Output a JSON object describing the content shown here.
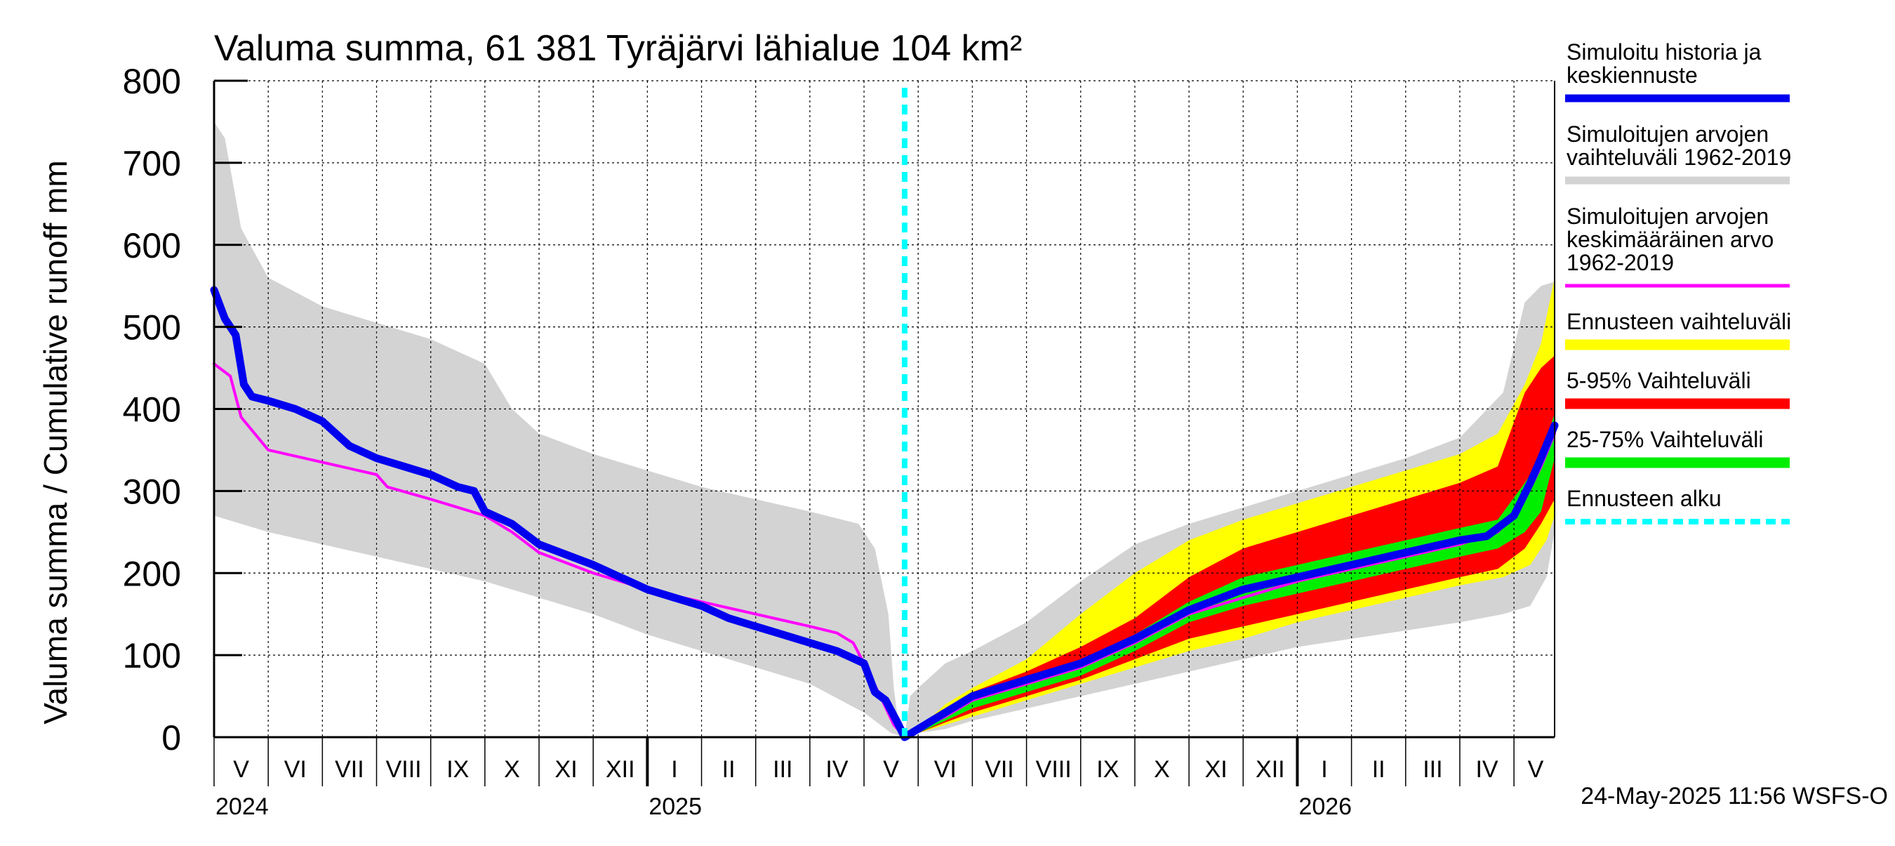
{
  "chart_data": {
    "type": "area",
    "title": "Valuma summa, 61 381 Tyräjärvi lähialue 104 km²",
    "ylabel": "Valuma summa / Cumulative runoff    mm",
    "ylim": [
      0,
      800
    ],
    "yticks": [
      0,
      100,
      200,
      300,
      400,
      500,
      600,
      700,
      800
    ],
    "xlim": [
      0,
      24.75
    ],
    "grid": true,
    "months": [
      {
        "label": "V",
        "x": 0.5
      },
      {
        "label": "VI",
        "x": 1.5
      },
      {
        "label": "VII",
        "x": 2.5
      },
      {
        "label": "VIII",
        "x": 3.5
      },
      {
        "label": "IX",
        "x": 4.5
      },
      {
        "label": "X",
        "x": 5.5
      },
      {
        "label": "XI",
        "x": 6.5
      },
      {
        "label": "XII",
        "x": 7.5
      },
      {
        "label": "I",
        "x": 8.5
      },
      {
        "label": "II",
        "x": 9.5
      },
      {
        "label": "III",
        "x": 10.5
      },
      {
        "label": "IV",
        "x": 11.5
      },
      {
        "label": "V",
        "x": 12.5
      },
      {
        "label": "VI",
        "x": 13.5
      },
      {
        "label": "VII",
        "x": 14.5
      },
      {
        "label": "VIII",
        "x": 15.5
      },
      {
        "label": "IX",
        "x": 16.5
      },
      {
        "label": "X",
        "x": 17.5
      },
      {
        "label": "XI",
        "x": 18.5
      },
      {
        "label": "XII",
        "x": 19.5
      },
      {
        "label": "I",
        "x": 20.5
      },
      {
        "label": "II",
        "x": 21.5
      },
      {
        "label": "III",
        "x": 22.5
      },
      {
        "label": "IV",
        "x": 23.5
      },
      {
        "label": "V",
        "x": 24.4
      }
    ],
    "years": [
      {
        "label": "2024",
        "x": 0
      },
      {
        "label": "2025",
        "x": 8
      },
      {
        "label": "2026",
        "x": 20
      }
    ],
    "year_boundaries": [
      8,
      20
    ],
    "forecast_start": 12.75,
    "series": [
      {
        "name": "Simuloitujen arvojen vaihteluväli 1962-2019",
        "kind": "band",
        "color": "#d3d3d3",
        "upper": [
          [
            0,
            750
          ],
          [
            0.2,
            730
          ],
          [
            0.5,
            620
          ],
          [
            1,
            560
          ],
          [
            2,
            525
          ],
          [
            3,
            505
          ],
          [
            4,
            485
          ],
          [
            5,
            455
          ],
          [
            5.5,
            400
          ],
          [
            6,
            370
          ],
          [
            7,
            345
          ],
          [
            8,
            325
          ],
          [
            9,
            305
          ],
          [
            10,
            290
          ],
          [
            11,
            275
          ],
          [
            11.9,
            260
          ],
          [
            12.2,
            230
          ],
          [
            12.45,
            150
          ],
          [
            12.55,
            60
          ],
          [
            12.65,
            10
          ],
          [
            12.75,
            0
          ],
          [
            12.85,
            50
          ],
          [
            13,
            60
          ],
          [
            13.5,
            90
          ],
          [
            14,
            105
          ],
          [
            15,
            140
          ],
          [
            16,
            190
          ],
          [
            17,
            235
          ],
          [
            18,
            260
          ],
          [
            19,
            280
          ],
          [
            20,
            300
          ],
          [
            21,
            320
          ],
          [
            22,
            340
          ],
          [
            23,
            365
          ],
          [
            23.8,
            420
          ],
          [
            24.2,
            530
          ],
          [
            24.5,
            550
          ],
          [
            24.75,
            555
          ]
        ],
        "lower": [
          [
            0,
            270
          ],
          [
            1,
            250
          ],
          [
            2,
            235
          ],
          [
            3,
            220
          ],
          [
            4,
            205
          ],
          [
            5,
            190
          ],
          [
            6,
            170
          ],
          [
            7,
            150
          ],
          [
            8,
            125
          ],
          [
            9,
            105
          ],
          [
            10,
            85
          ],
          [
            11,
            65
          ],
          [
            12,
            30
          ],
          [
            12.5,
            5
          ],
          [
            12.75,
            0
          ],
          [
            13,
            5
          ],
          [
            13.5,
            10
          ],
          [
            14,
            20
          ],
          [
            15,
            35
          ],
          [
            16,
            50
          ],
          [
            17,
            65
          ],
          [
            18,
            80
          ],
          [
            19,
            95
          ],
          [
            20,
            110
          ],
          [
            21,
            120
          ],
          [
            22,
            130
          ],
          [
            23,
            140
          ],
          [
            23.8,
            150
          ],
          [
            24.3,
            160
          ],
          [
            24.6,
            195
          ],
          [
            24.75,
            250
          ]
        ]
      },
      {
        "name": "Ennusteen vaihteluväli",
        "kind": "band",
        "color": "#ffff00",
        "upper": [
          [
            12.75,
            0
          ],
          [
            13,
            10
          ],
          [
            13.5,
            40
          ],
          [
            14,
            60
          ],
          [
            15,
            95
          ],
          [
            16,
            150
          ],
          [
            17,
            200
          ],
          [
            18,
            240
          ],
          [
            19,
            265
          ],
          [
            20,
            285
          ],
          [
            21,
            305
          ],
          [
            22,
            325
          ],
          [
            23,
            345
          ],
          [
            23.7,
            370
          ],
          [
            24.2,
            430
          ],
          [
            24.5,
            480
          ],
          [
            24.75,
            560
          ]
        ],
        "lower": [
          [
            12.75,
            0
          ],
          [
            13,
            5
          ],
          [
            13.5,
            15
          ],
          [
            14,
            25
          ],
          [
            15,
            45
          ],
          [
            16,
            65
          ],
          [
            17,
            85
          ],
          [
            18,
            105
          ],
          [
            19,
            120
          ],
          [
            20,
            140
          ],
          [
            21,
            155
          ],
          [
            22,
            170
          ],
          [
            23,
            185
          ],
          [
            23.8,
            195
          ],
          [
            24.3,
            210
          ],
          [
            24.6,
            240
          ],
          [
            24.75,
            270
          ]
        ]
      },
      {
        "name": "5-95% Vaihteluväli",
        "kind": "band",
        "color": "#ff0000",
        "upper": [
          [
            12.75,
            0
          ],
          [
            13,
            10
          ],
          [
            13.5,
            30
          ],
          [
            14,
            55
          ],
          [
            15,
            80
          ],
          [
            16,
            110
          ],
          [
            17,
            145
          ],
          [
            18,
            195
          ],
          [
            19,
            230
          ],
          [
            20,
            250
          ],
          [
            21,
            270
          ],
          [
            22,
            290
          ],
          [
            23,
            310
          ],
          [
            23.7,
            330
          ],
          [
            24.2,
            420
          ],
          [
            24.5,
            450
          ],
          [
            24.75,
            465
          ]
        ],
        "lower": [
          [
            12.75,
            0
          ],
          [
            13,
            5
          ],
          [
            13.5,
            18
          ],
          [
            14,
            30
          ],
          [
            15,
            50
          ],
          [
            16,
            70
          ],
          [
            17,
            95
          ],
          [
            18,
            120
          ],
          [
            19,
            135
          ],
          [
            20,
            150
          ],
          [
            21,
            165
          ],
          [
            22,
            180
          ],
          [
            23,
            195
          ],
          [
            23.7,
            205
          ],
          [
            24.2,
            230
          ],
          [
            24.5,
            260
          ],
          [
            24.75,
            290
          ]
        ]
      },
      {
        "name": "25-75% Vaihteluväli",
        "kind": "band",
        "color": "#00ee00",
        "upper": [
          [
            12.75,
            0
          ],
          [
            13,
            8
          ],
          [
            13.5,
            25
          ],
          [
            14,
            45
          ],
          [
            15,
            65
          ],
          [
            16,
            90
          ],
          [
            17,
            125
          ],
          [
            18,
            165
          ],
          [
            19,
            195
          ],
          [
            20,
            210
          ],
          [
            21,
            225
          ],
          [
            22,
            240
          ],
          [
            23,
            255
          ],
          [
            23.7,
            265
          ],
          [
            24.2,
            310
          ],
          [
            24.5,
            340
          ],
          [
            24.75,
            395
          ]
        ],
        "lower": [
          [
            12.75,
            0
          ],
          [
            13,
            5
          ],
          [
            13.5,
            20
          ],
          [
            14,
            35
          ],
          [
            15,
            55
          ],
          [
            16,
            75
          ],
          [
            17,
            105
          ],
          [
            18,
            140
          ],
          [
            19,
            160
          ],
          [
            20,
            175
          ],
          [
            21,
            190
          ],
          [
            22,
            205
          ],
          [
            23,
            220
          ],
          [
            23.7,
            230
          ],
          [
            24.2,
            250
          ],
          [
            24.5,
            275
          ],
          [
            24.75,
            340
          ]
        ]
      },
      {
        "name": "Simuloitujen arvojen keskimääräinen arvo 1962-2019",
        "kind": "line",
        "color": "#ff00ff",
        "width": 4,
        "points": [
          [
            0,
            455
          ],
          [
            0.3,
            440
          ],
          [
            0.5,
            390
          ],
          [
            1,
            350
          ],
          [
            2,
            335
          ],
          [
            3,
            320
          ],
          [
            3.2,
            305
          ],
          [
            4,
            290
          ],
          [
            5,
            270
          ],
          [
            5.5,
            250
          ],
          [
            6,
            225
          ],
          [
            7,
            200
          ],
          [
            8,
            180
          ],
          [
            9,
            165
          ],
          [
            10,
            150
          ],
          [
            11,
            135
          ],
          [
            11.5,
            127
          ],
          [
            11.8,
            115
          ],
          [
            12,
            90
          ],
          [
            12.3,
            50
          ],
          [
            12.55,
            15
          ],
          [
            12.75,
            0
          ],
          [
            13,
            10
          ],
          [
            13.5,
            25
          ],
          [
            14,
            45
          ],
          [
            15,
            65
          ],
          [
            16,
            85
          ],
          [
            17,
            115
          ],
          [
            18,
            150
          ],
          [
            19,
            170
          ],
          [
            20,
            190
          ],
          [
            21,
            205
          ],
          [
            22,
            220
          ],
          [
            23,
            235
          ],
          [
            23.7,
            250
          ],
          [
            24.2,
            290
          ],
          [
            24.5,
            330
          ],
          [
            24.75,
            370
          ]
        ]
      },
      {
        "name": "Simuloitu historia ja keskiennuste",
        "kind": "line",
        "color": "#0000ee",
        "width": 11,
        "points": [
          [
            0,
            545
          ],
          [
            0.2,
            510
          ],
          [
            0.4,
            490
          ],
          [
            0.55,
            430
          ],
          [
            0.7,
            415
          ],
          [
            1,
            410
          ],
          [
            1.5,
            400
          ],
          [
            2,
            385
          ],
          [
            2.5,
            355
          ],
          [
            3,
            340
          ],
          [
            3.5,
            330
          ],
          [
            4,
            320
          ],
          [
            4.5,
            305
          ],
          [
            4.8,
            300
          ],
          [
            5,
            275
          ],
          [
            5.5,
            260
          ],
          [
            6,
            235
          ],
          [
            7,
            210
          ],
          [
            7.5,
            195
          ],
          [
            8,
            180
          ],
          [
            8.5,
            170
          ],
          [
            9,
            160
          ],
          [
            9.5,
            145
          ],
          [
            10,
            135
          ],
          [
            10.5,
            125
          ],
          [
            11,
            115
          ],
          [
            11.5,
            105
          ],
          [
            12,
            90
          ],
          [
            12.2,
            55
          ],
          [
            12.4,
            45
          ],
          [
            12.6,
            20
          ],
          [
            12.75,
            0
          ],
          [
            13,
            10
          ],
          [
            13.5,
            30
          ],
          [
            14,
            50
          ],
          [
            15,
            70
          ],
          [
            16,
            90
          ],
          [
            17,
            120
          ],
          [
            18,
            155
          ],
          [
            19,
            180
          ],
          [
            20,
            195
          ],
          [
            21,
            210
          ],
          [
            22,
            225
          ],
          [
            23,
            240
          ],
          [
            23.5,
            245
          ],
          [
            24,
            270
          ],
          [
            24.3,
            310
          ],
          [
            24.5,
            340
          ],
          [
            24.75,
            380
          ]
        ]
      },
      {
        "name": "Ennusteen alku",
        "kind": "vline",
        "color": "#00ffff"
      }
    ],
    "legend_entries": [
      {
        "lines": [
          "Simuloitu historia ja",
          "keskiennuste"
        ],
        "color": "#0000ee",
        "width": 11,
        "dashed": false
      },
      {
        "lines": [
          "Simuloitujen arvojen",
          "vaihteluväli 1962-2019"
        ],
        "color": "#d3d3d3",
        "width": 11,
        "dashed": false
      },
      {
        "lines": [
          "Simuloitujen arvojen",
          "keskimääräinen arvo",
          "   1962-2019"
        ],
        "color": "#ff00ff",
        "width": 5,
        "dashed": false
      },
      {
        "lines": [
          "Ennusteen vaihteluväli"
        ],
        "color": "#ffff00",
        "width": 15,
        "dashed": false
      },
      {
        "lines": [
          "5-95% Vaihteluväli"
        ],
        "color": "#ff0000",
        "width": 15,
        "dashed": false
      },
      {
        "lines": [
          "25-75% Vaihteluväli"
        ],
        "color": "#00ee00",
        "width": 15,
        "dashed": false
      },
      {
        "lines": [
          "Ennusteen alku"
        ],
        "color": "#00ffff",
        "width": 8,
        "dashed": true
      }
    ],
    "legend_position": "right",
    "timestamp": "24-May-2025 11:56 WSFS-O"
  }
}
